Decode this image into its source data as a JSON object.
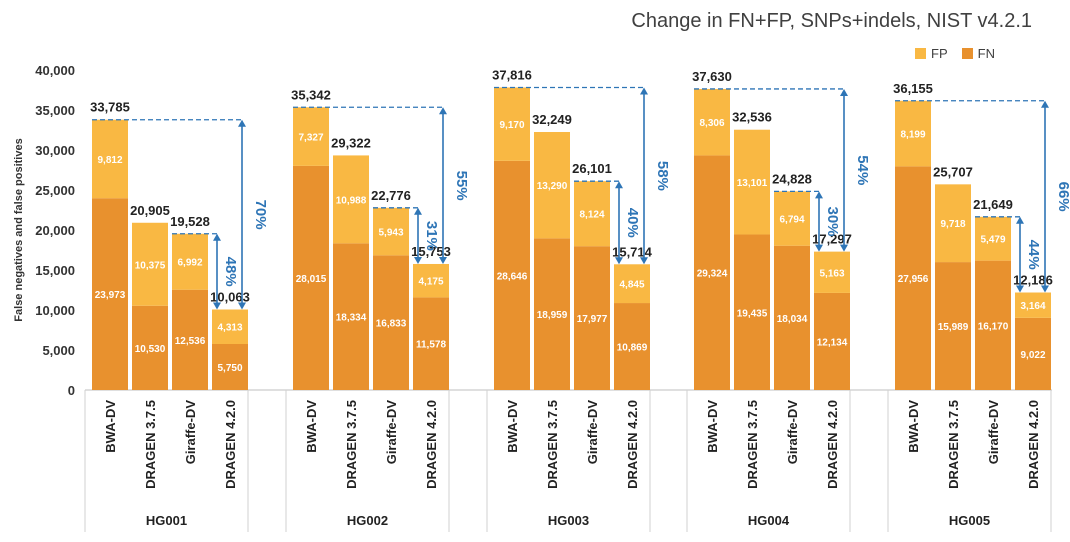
{
  "chart_data": {
    "type": "bar",
    "stacked": true,
    "title": "Change in FN+FP, SNPs+indels, NIST v4.2.1",
    "ylabel": "False negatives and false positives",
    "ylim": [
      0,
      40000
    ],
    "yticks": [
      "0",
      "5,000",
      "10,000",
      "15,000",
      "20,000",
      "25,000",
      "30,000",
      "35,000",
      "40,000"
    ],
    "legend": {
      "position": "top-right",
      "items": [
        "FP",
        "FN"
      ]
    },
    "colors": {
      "FN": "#E8912E",
      "FP": "#F9B843",
      "arrow": "#2E75B6",
      "text_dark": "#222222",
      "text_light": "#ffffff"
    },
    "groups": [
      {
        "name": "HG001",
        "bars": [
          {
            "category": "BWA-DV",
            "fn": 23973,
            "fp": 9812,
            "fn_label": "23,973",
            "fp_label": "9,812",
            "total_label": "33,785"
          },
          {
            "category": "DRAGEN 3.7.5",
            "fn": 10530,
            "fp": 10375,
            "fn_label": "10,530",
            "fp_label": "10,375",
            "total_label": "20,905"
          },
          {
            "category": "Giraffe-DV",
            "fn": 12536,
            "fp": 6992,
            "fn_label": "12,536",
            "fp_label": "6,992",
            "total_label": "19,528"
          },
          {
            "category": "DRAGEN 4.2.0",
            "fn": 5750,
            "fp": 4313,
            "fn_label": "5,750",
            "fp_label": "4,313",
            "total_label": "10,063"
          }
        ],
        "reductions": [
          {
            "from": 0,
            "label": "70%"
          },
          {
            "from": 2,
            "label": "48%"
          }
        ]
      },
      {
        "name": "HG002",
        "bars": [
          {
            "category": "BWA-DV",
            "fn": 28015,
            "fp": 7327,
            "fn_label": "28,015",
            "fp_label": "7,327",
            "total_label": "35,342"
          },
          {
            "category": "DRAGEN 3.7.5",
            "fn": 18334,
            "fp": 10988,
            "fn_label": "18,334",
            "fp_label": "10,988",
            "total_label": "29,322"
          },
          {
            "category": "Giraffe-DV",
            "fn": 16833,
            "fp": 5943,
            "fn_label": "16,833",
            "fp_label": "5,943",
            "total_label": "22,776"
          },
          {
            "category": "DRAGEN 4.2.0",
            "fn": 11578,
            "fp": 4175,
            "fn_label": "11,578",
            "fp_label": "4,175",
            "total_label": "15,753"
          }
        ],
        "reductions": [
          {
            "from": 0,
            "label": "55%"
          },
          {
            "from": 2,
            "label": "31%"
          }
        ]
      },
      {
        "name": "HG003",
        "bars": [
          {
            "category": "BWA-DV",
            "fn": 28646,
            "fp": 9170,
            "fn_label": "28,646",
            "fp_label": "9,170",
            "total_label": "37,816"
          },
          {
            "category": "DRAGEN 3.7.5",
            "fn": 18959,
            "fp": 13290,
            "fn_label": "18,959",
            "fp_label": "13,290",
            "total_label": "32,249"
          },
          {
            "category": "Giraffe-DV",
            "fn": 17977,
            "fp": 8124,
            "fn_label": "17,977",
            "fp_label": "8,124",
            "total_label": "26,101"
          },
          {
            "category": "DRAGEN 4.2.0",
            "fn": 10869,
            "fp": 4845,
            "fn_label": "10,869",
            "fp_label": "4,845",
            "total_label": "15,714"
          }
        ],
        "reductions": [
          {
            "from": 0,
            "label": "58%"
          },
          {
            "from": 2,
            "label": "40%"
          }
        ]
      },
      {
        "name": "HG004",
        "bars": [
          {
            "category": "BWA-DV",
            "fn": 29324,
            "fp": 8306,
            "fn_label": "29,324",
            "fp_label": "8,306",
            "total_label": "37,630"
          },
          {
            "category": "DRAGEN 3.7.5",
            "fn": 19435,
            "fp": 13101,
            "fn_label": "19,435",
            "fp_label": "13,101",
            "total_label": "32,536"
          },
          {
            "category": "Giraffe-DV",
            "fn": 18034,
            "fp": 6794,
            "fn_label": "18,034",
            "fp_label": "6,794",
            "total_label": "24,828"
          },
          {
            "category": "DRAGEN 4.2.0",
            "fn": 12134,
            "fp": 5163,
            "fn_label": "12,134",
            "fp_label": "5,163",
            "total_label": "17,297"
          }
        ],
        "reductions": [
          {
            "from": 0,
            "label": "54%"
          },
          {
            "from": 2,
            "label": "30%"
          }
        ]
      },
      {
        "name": "HG005",
        "bars": [
          {
            "category": "BWA-DV",
            "fn": 27956,
            "fp": 8199,
            "fn_label": "27,956",
            "fp_label": "8,199",
            "total_label": "36,155"
          },
          {
            "category": "DRAGEN 3.7.5",
            "fn": 15989,
            "fp": 9718,
            "fn_label": "15,989",
            "fp_label": "9,718",
            "total_label": "25,707"
          },
          {
            "category": "Giraffe-DV",
            "fn": 16170,
            "fp": 5479,
            "fn_label": "16,170",
            "fp_label": "5,479",
            "total_label": "21,649"
          },
          {
            "category": "DRAGEN 4.2.0",
            "fn": 9022,
            "fp": 3164,
            "fn_label": "9,022",
            "fp_label": "3,164",
            "total_label": "12,186"
          }
        ],
        "reductions": [
          {
            "from": 0,
            "label": "66%"
          },
          {
            "from": 2,
            "label": "44%"
          }
        ]
      }
    ]
  }
}
